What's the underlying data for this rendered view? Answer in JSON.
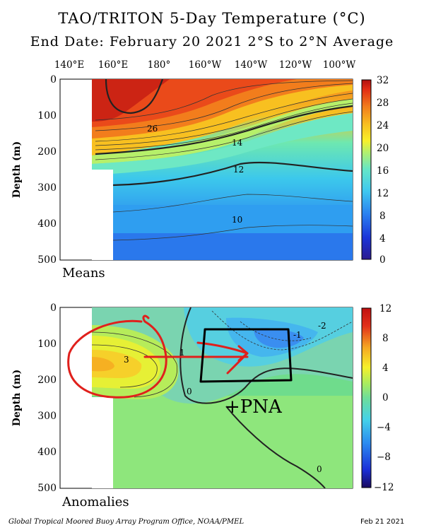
{
  "header": {
    "title": "TAO/TRITON 5-Day Temperature (°C)",
    "subtitle": "End Date: February 20 2021   2°S to 2°N Average"
  },
  "footer": {
    "credit": "Global Tropical Moored Buoy Array Program Office, NOAA/PMEL",
    "date": "Feb 21 2021"
  },
  "annotations": {
    "handwritten": "+PNA"
  },
  "colors": {
    "red_annotation": "#e0201c",
    "black_annotation": "#000000"
  },
  "chart_data": [
    {
      "type": "heatmap",
      "panel_label": "Means",
      "ylabel": "Depth (m)",
      "x_ticks": [
        "140°E",
        "160°E",
        "180°",
        "160°W",
        "140°W",
        "120°W",
        "100°W"
      ],
      "y_ticks": [
        0,
        100,
        200,
        300,
        400,
        500
      ],
      "ylim": [
        500,
        0
      ],
      "colorbar_ticks": [
        32,
        28,
        24,
        20,
        16,
        12,
        8,
        4,
        0
      ],
      "colorbar_range": [
        0,
        32
      ],
      "contour_labels": [
        "26",
        "14",
        "12",
        "10"
      ],
      "notes": "Warm pool >28°C in the west near surface; thermocline shoals eastward."
    },
    {
      "type": "heatmap",
      "panel_label": "Anomalies",
      "ylabel": "Depth (m)",
      "x_ticks": [
        "140°E",
        "160°E",
        "180°",
        "160°W",
        "140°W",
        "120°W",
        "100°W"
      ],
      "y_ticks": [
        0,
        100,
        200,
        300,
        400,
        500
      ],
      "ylim": [
        500,
        0
      ],
      "colorbar_ticks": [
        12,
        8,
        4,
        0,
        -4,
        -8,
        -12
      ],
      "colorbar_range": [
        -12,
        12
      ],
      "contour_labels": [
        "3",
        "1",
        "0",
        "-1",
        "-2",
        "0"
      ],
      "notes": "Positive anomaly ~+3°C at ~150 m in west; negative anomaly ~-2°C near 100 m around 140°W."
    }
  ]
}
